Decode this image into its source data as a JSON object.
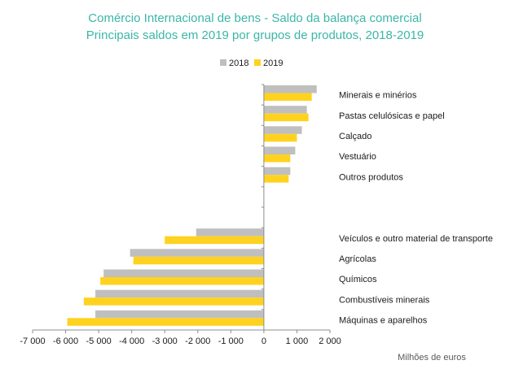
{
  "chart_data": {
    "type": "bar",
    "orientation": "horizontal",
    "title": "Comércio Internacional de bens - Saldo da balança comercial",
    "subtitle": "Principais saldos em 2019 por grupos de produtos, 2018-2019",
    "xlabel": "Milhões de euros",
    "ylabel": "",
    "xlim": [
      -7000,
      2000
    ],
    "x_ticks": [
      -7000,
      -6000,
      -5000,
      -4000,
      -3000,
      -2000,
      -1000,
      0,
      1000,
      2000
    ],
    "x_tick_labels": [
      "-7 000",
      "-6 000",
      "-5 000",
      "-4 000",
      "-3 000",
      "-2 000",
      "-1 000",
      "0",
      "1 000",
      "2 000"
    ],
    "grid": false,
    "legend_position": "top",
    "categories": [
      "Minerais e minérios",
      "Pastas celulósicas e papel",
      "Calçado",
      "Vestuário",
      "Outros produtos",
      "",
      "",
      "Veículos e outro material de transporte",
      "Agrícolas",
      "Químicos",
      "Combustíveis minerais",
      "Máquinas e aparelhos"
    ],
    "series": [
      {
        "name": "2018",
        "color": "#bfbfbf",
        "values": [
          1600,
          1300,
          1150,
          950,
          800,
          null,
          null,
          -2050,
          -4050,
          -4850,
          -5100,
          -5100
        ]
      },
      {
        "name": "2019",
        "color": "#ffd21f",
        "values": [
          1450,
          1350,
          1000,
          800,
          750,
          null,
          null,
          -3000,
          -3950,
          -4950,
          -5450,
          -5950
        ]
      }
    ]
  }
}
